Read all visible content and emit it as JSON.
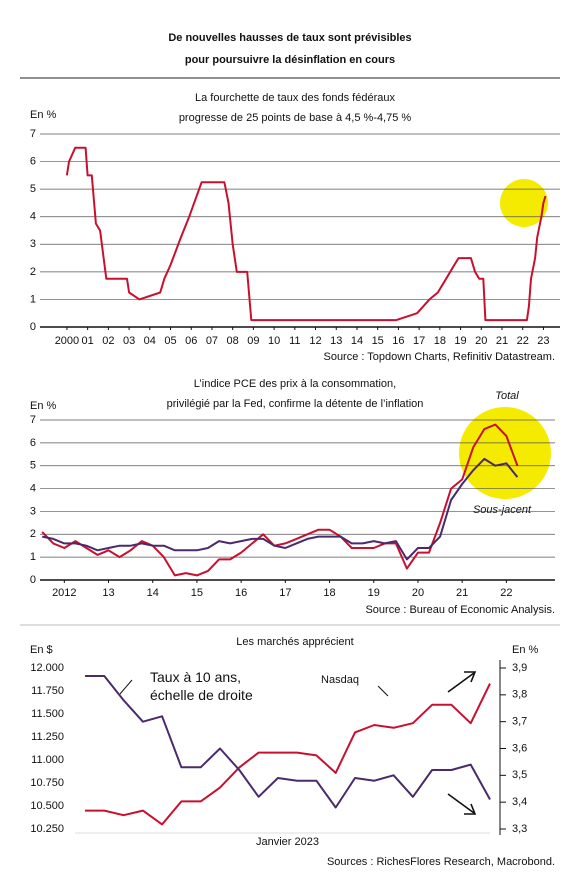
{
  "title": [
    "De nouvelles hausses de taux sont prévisibles",
    "pour poursuivre la désinflation en cours"
  ],
  "chart_data": [
    {
      "type": "line",
      "title": [
        "La fourchette de taux des fonds fédéraux",
        "progresse de 25 points de base à 4,5 %-4,75 %"
      ],
      "y_unit": "En %",
      "source": "Source : Topdown Charts, Refinitiv Datastream.",
      "x": [
        2000.0,
        2000.1,
        2000.4,
        2000.9,
        2001.0,
        2001.2,
        2001.4,
        2001.6,
        2001.9,
        2002.9,
        2003.0,
        2003.5,
        2004.5,
        2004.7,
        2005.0,
        2005.5,
        2005.9,
        2006.5,
        2007.6,
        2007.8,
        2008.0,
        2008.2,
        2008.7,
        2008.9,
        2015.9,
        2016.9,
        2017.2,
        2017.5,
        2017.9,
        2018.3,
        2018.7,
        2018.9,
        2019.5,
        2019.7,
        2019.9,
        2020.1,
        2020.2,
        2022.2,
        2022.3,
        2022.4,
        2022.6,
        2022.7,
        2022.9,
        2023.0,
        2023.1
      ],
      "values": [
        5.5,
        6.0,
        6.5,
        6.5,
        5.5,
        5.5,
        3.75,
        3.5,
        1.75,
        1.75,
        1.25,
        1.0,
        1.25,
        1.75,
        2.25,
        3.25,
        4.0,
        5.25,
        5.25,
        4.5,
        3.0,
        2.0,
        2.0,
        0.25,
        0.25,
        0.5,
        0.75,
        1.0,
        1.25,
        1.75,
        2.25,
        2.5,
        2.5,
        2.0,
        1.75,
        1.75,
        0.25,
        0.25,
        0.75,
        1.75,
        2.5,
        3.25,
        4.0,
        4.5,
        4.75
      ],
      "color": "#c8102e",
      "xlim": [
        1998.7,
        2023.8
      ],
      "xticks": [
        {
          "value": 2000,
          "label": "2000"
        },
        {
          "value": 2001,
          "label": "01"
        },
        {
          "value": 2002,
          "label": "02"
        },
        {
          "value": 2003,
          "label": "03"
        },
        {
          "value": 2004,
          "label": "04"
        },
        {
          "value": 2005,
          "label": "05"
        },
        {
          "value": 2006,
          "label": "06"
        },
        {
          "value": 2007,
          "label": "07"
        },
        {
          "value": 2008,
          "label": "08"
        },
        {
          "value": 2009,
          "label": "09"
        },
        {
          "value": 2010,
          "label": "10"
        },
        {
          "value": 2011,
          "label": "11"
        },
        {
          "value": 2012,
          "label": "12"
        },
        {
          "value": 2013,
          "label": "13"
        },
        {
          "value": 2014,
          "label": "14"
        },
        {
          "value": 2015,
          "label": "15"
        },
        {
          "value": 2016,
          "label": "16"
        },
        {
          "value": 2017,
          "label": "17"
        },
        {
          "value": 2018,
          "label": "18"
        },
        {
          "value": 2019,
          "label": "19"
        },
        {
          "value": 2020,
          "label": "20"
        },
        {
          "value": 2021,
          "label": "21"
        },
        {
          "value": 2022,
          "label": "22"
        },
        {
          "value": 2023,
          "label": "23"
        }
      ],
      "ylim": [
        0,
        7
      ],
      "yticks": [
        0,
        1,
        2,
        3,
        4,
        5,
        6,
        7
      ],
      "grid": true
    },
    {
      "type": "line",
      "title": [
        "L’indice PCE des prix à la consommation,",
        "privilégié par la Fed, confirme la détente de l’inflation"
      ],
      "y_unit": "En %",
      "source": "Source : Bureau of Economic Analysis.",
      "x": [
        2012.0,
        2012.25,
        2012.5,
        2012.75,
        2013.0,
        2013.25,
        2013.5,
        2013.75,
        2014.0,
        2014.25,
        2014.5,
        2014.75,
        2015.0,
        2015.25,
        2015.5,
        2015.75,
        2016.0,
        2016.25,
        2016.5,
        2016.75,
        2017.0,
        2017.25,
        2017.5,
        2017.75,
        2018.0,
        2018.25,
        2018.5,
        2018.75,
        2019.0,
        2019.25,
        2019.5,
        2019.75,
        2020.0,
        2020.25,
        2020.5,
        2020.75,
        2021.0,
        2021.25,
        2021.5,
        2021.75,
        2022.0,
        2022.25,
        2022.5,
        2022.75
      ],
      "series": [
        {
          "name": "Total",
          "color": "#c8102e",
          "values": [
            2.1,
            1.6,
            1.4,
            1.7,
            1.4,
            1.1,
            1.3,
            1.0,
            1.3,
            1.7,
            1.5,
            1.0,
            0.2,
            0.3,
            0.2,
            0.4,
            0.9,
            0.9,
            1.2,
            1.6,
            2.0,
            1.5,
            1.6,
            1.8,
            2.0,
            2.2,
            2.2,
            1.9,
            1.4,
            1.4,
            1.4,
            1.6,
            1.6,
            0.5,
            1.2,
            1.2,
            2.5,
            4.0,
            4.4,
            5.8,
            6.6,
            6.8,
            6.3,
            5.0
          ]
        },
        {
          "name": "Sous-jacent",
          "color": "#4b2a6b",
          "values": [
            1.9,
            1.8,
            1.6,
            1.6,
            1.5,
            1.3,
            1.4,
            1.5,
            1.5,
            1.6,
            1.5,
            1.5,
            1.3,
            1.3,
            1.3,
            1.4,
            1.7,
            1.6,
            1.7,
            1.8,
            1.8,
            1.5,
            1.4,
            1.6,
            1.8,
            1.9,
            1.9,
            1.9,
            1.6,
            1.6,
            1.7,
            1.6,
            1.7,
            0.9,
            1.4,
            1.4,
            1.9,
            3.5,
            4.2,
            4.8,
            5.3,
            5.0,
            5.1,
            4.5
          ]
        }
      ],
      "xlim": [
        2011.95,
        2023.6
      ],
      "xticks": [
        {
          "value": 2012.5,
          "label": "2012"
        },
        {
          "value": 2013.5,
          "label": "13"
        },
        {
          "value": 2014.5,
          "label": "14"
        },
        {
          "value": 2015.5,
          "label": "15"
        },
        {
          "value": 2016.5,
          "label": "16"
        },
        {
          "value": 2017.5,
          "label": "17"
        },
        {
          "value": 2018.5,
          "label": "18"
        },
        {
          "value": 2019.5,
          "label": "19"
        },
        {
          "value": 2020.5,
          "label": "20"
        },
        {
          "value": 2021.5,
          "label": "21"
        },
        {
          "value": 2022.5,
          "label": "22"
        }
      ],
      "ylim": [
        0,
        7
      ],
      "yticks": [
        0,
        1,
        2,
        3,
        4,
        5,
        6,
        7
      ],
      "grid": true
    },
    {
      "type": "line",
      "title": "Les marchés apprécient",
      "y_unit": "En $",
      "y2_unit": "En %",
      "x_label": "Janvier 2023",
      "source": "Sources : RichesFlores Research, Macrobond.",
      "series": [
        {
          "name": "Nasdaq",
          "color": "#c8102e",
          "values": [
            10450,
            10450,
            10400,
            10450,
            10300,
            10550,
            10550,
            10700,
            10920,
            11080,
            11080,
            11080,
            11050,
            10860,
            11300,
            11380,
            11350,
            11400,
            11600,
            11600,
            11400,
            11830
          ]
        },
        {
          "name": "Taux à 10 ans, échelle de droite",
          "color": "#4b2a6b",
          "axis": "y2",
          "values": [
            3.87,
            3.87,
            3.78,
            3.7,
            3.72,
            3.53,
            3.53,
            3.6,
            3.52,
            3.42,
            3.49,
            3.48,
            3.48,
            3.38,
            3.49,
            3.48,
            3.5,
            3.42,
            3.52,
            3.52,
            3.54,
            3.41
          ]
        }
      ],
      "ylim": [
        10250,
        12000
      ],
      "yticks": [
        {
          "value": 10250,
          "label": "10.250"
        },
        {
          "value": 10500,
          "label": "10.500"
        },
        {
          "value": 10750,
          "label": "10.750"
        },
        {
          "value": 11000,
          "label": "11.000"
        },
        {
          "value": 11250,
          "label": "11.250"
        },
        {
          "value": 11500,
          "label": "11.500"
        },
        {
          "value": 11750,
          "label": "11.750"
        },
        {
          "value": 12000,
          "label": "12.000"
        }
      ],
      "y2lim": [
        3.3,
        3.9
      ],
      "y2ticks": [
        {
          "value": 3.3,
          "label": "3,3"
        },
        {
          "value": 3.4,
          "label": "3,4"
        },
        {
          "value": 3.5,
          "label": "3,5"
        },
        {
          "value": 3.6,
          "label": "3,6"
        },
        {
          "value": 3.7,
          "label": "3,7"
        },
        {
          "value": 3.8,
          "label": "3,8"
        },
        {
          "value": 3.9,
          "label": "3,9"
        }
      ],
      "grid": false
    }
  ]
}
